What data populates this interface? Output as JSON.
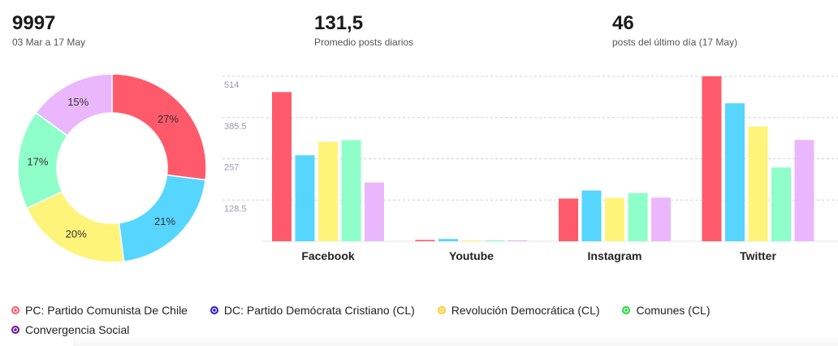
{
  "stats": [
    {
      "value": "9997",
      "label": "03 Mar a 17 May"
    },
    {
      "value": "131,5",
      "label": "Promedio posts diarios"
    },
    {
      "value": "46",
      "label": "posts del último día (17 May)"
    }
  ],
  "legend": [
    {
      "label": "PC: Partido Comunista De Chile",
      "dot_color": "#ff5a6b",
      "color": "#ff5a6b"
    },
    {
      "label": "DC: Partido Demócrata Cristiano (CL)",
      "dot_color": "#2a16d6",
      "color": "#56d5ff"
    },
    {
      "label": "Revolución Democrática (CL)",
      "dot_color": "#ffcc22",
      "color": "#fff47a"
    },
    {
      "label": "Comunes (CL)",
      "dot_color": "#20d83c",
      "color": "#8effc8"
    },
    {
      "label": "Convergencia Social",
      "dot_color": "#6a0f8f",
      "color": "#ebb7fc"
    }
  ],
  "chart_data": [
    {
      "type": "pie",
      "variant": "donut",
      "labels": [
        "PC: Partido Comunista De Chile",
        "DC: Partido Demócrata Cristiano (CL)",
        "Revolución Democrática (CL)",
        "Comunes (CL)",
        "Convergencia Social"
      ],
      "values": [
        27,
        21,
        20,
        17,
        15
      ],
      "value_labels": [
        "27%",
        "21%",
        "20%",
        "17%",
        "15%"
      ],
      "colors": [
        "#ff5a6b",
        "#56d5ff",
        "#fff47a",
        "#8effc8",
        "#ebb7fc"
      ]
    },
    {
      "type": "bar",
      "categories": [
        "Facebook",
        "Youtube",
        "Instagram",
        "Twitter"
      ],
      "yticks": [
        "128.5",
        "257",
        "385.5",
        "514"
      ],
      "ylim": [
        0,
        514
      ],
      "grid": true,
      "series": [
        {
          "name": "PC: Partido Comunista De Chile",
          "color": "#ff5a6b",
          "values": [
            465,
            4,
            133,
            514
          ]
        },
        {
          "name": "DC: Partido Demócrata Cristiano (CL)",
          "color": "#56d5ff",
          "values": [
            268,
            7,
            158,
            430
          ]
        },
        {
          "name": "Revolución Democrática (CL)",
          "color": "#fff47a",
          "values": [
            310,
            3,
            135,
            358
          ]
        },
        {
          "name": "Comunes (CL)",
          "color": "#8effc8",
          "values": [
            315,
            3,
            150,
            230
          ]
        },
        {
          "name": "Convergencia Social",
          "color": "#ebb7fc",
          "values": [
            183,
            3,
            136,
            316
          ]
        }
      ]
    }
  ]
}
